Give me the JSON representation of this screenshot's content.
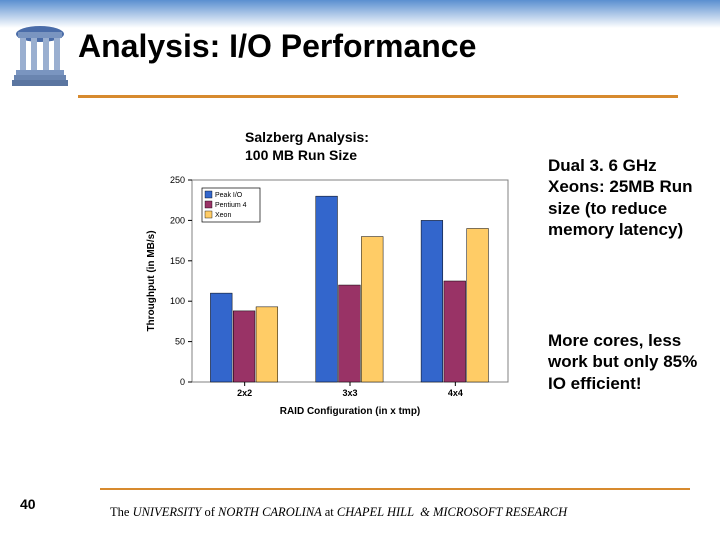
{
  "slide": {
    "title": "Analysis: I/O Performance",
    "number": "40",
    "footer": "The UNIVERSITY of NORTH CAROLINA at CHAPEL HILL & MICROSOFT RESEARCH"
  },
  "chart": {
    "type": "bar",
    "title_line1": "Salzberg Analysis:",
    "title_line2": "100 MB Run Size",
    "ylabel": "Throughput (in MB/s)",
    "xlabel": "RAID Configuration (in x tmp)",
    "ylim": [
      0,
      250
    ],
    "ytick_step": 50,
    "categories": [
      "2x2",
      "3x3",
      "4x4"
    ],
    "series": [
      {
        "name": "Peak I/O",
        "color": "#3366cc",
        "values": [
          110,
          230,
          200
        ]
      },
      {
        "name": "Pentium 4",
        "color": "#993366",
        "values": [
          88,
          120,
          125
        ]
      },
      {
        "name": "Xeon",
        "color": "#ffcc66",
        "values": [
          93,
          180,
          190
        ]
      }
    ],
    "background_color": "#ffffff",
    "plot_border_color": "#808080",
    "axis_text_color": "#000000",
    "axis_fontsize": 9,
    "label_fontsize": 10,
    "bar_group_width": 0.65,
    "bar_gap": 0.05,
    "legend": {
      "position": "upper-left",
      "fontsize": 7,
      "border_color": "#000000",
      "swatch_size": 7
    }
  },
  "annotations": {
    "text1": "Dual 3. 6 GHz Xeons: 25MB Run size (to reduce memory latency)",
    "text2": "More cores, less work but only 85% IO efficient!"
  },
  "colors": {
    "header_gradient_top": "#5a8fd0",
    "accent": "#d78a2e",
    "well_dome": "#4a6ca8",
    "well_column": "#9aafd0"
  }
}
